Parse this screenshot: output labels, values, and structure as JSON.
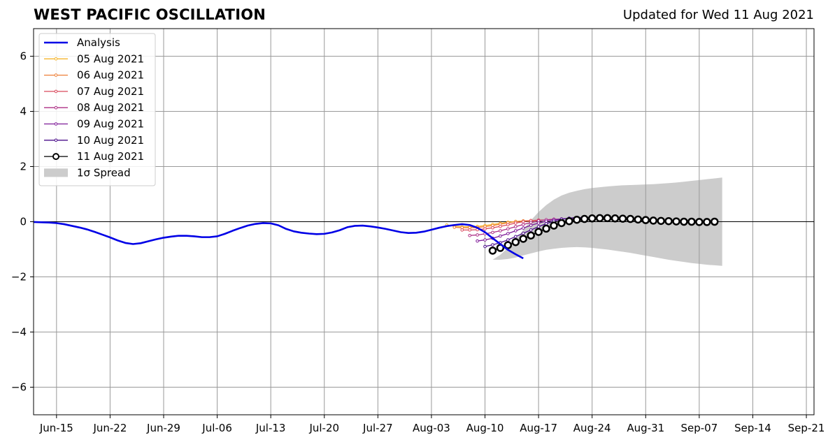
{
  "header": {
    "title": "WEST PACIFIC OSCILLATION",
    "updated": "Updated for Wed 11 Aug 2021"
  },
  "chart_data": {
    "type": "line",
    "title": "WEST PACIFIC OSCILLATION",
    "subtitle": "Updated for Wed 11 Aug 2021",
    "xlabel": "",
    "ylabel": "",
    "ylim": [
      -7,
      7
    ],
    "yticks": [
      -6,
      -4,
      -2,
      0,
      2,
      4,
      6
    ],
    "ytick_labels": [
      "−6",
      "−4",
      "−2",
      "0",
      "2",
      "4",
      "6"
    ],
    "xlim": [
      "2021-06-12",
      "2021-09-22"
    ],
    "xticks": [
      "2021-06-15",
      "2021-06-22",
      "2021-06-29",
      "2021-07-06",
      "2021-07-13",
      "2021-07-20",
      "2021-07-27",
      "2021-08-03",
      "2021-08-10",
      "2021-08-17",
      "2021-08-24",
      "2021-08-31",
      "2021-09-07",
      "2021-09-14",
      "2021-09-21"
    ],
    "xtick_labels": [
      "Jun-15",
      "Jun-22",
      "Jun-29",
      "Jul-06",
      "Jul-13",
      "Jul-20",
      "Jul-27",
      "Aug-03",
      "Aug-10",
      "Aug-17",
      "Aug-24",
      "Aug-31",
      "Sep-07",
      "Sep-14",
      "Sep-21"
    ],
    "grid": true,
    "legend_position": "top-left",
    "zero_line": true,
    "analysis": {
      "name": "Analysis",
      "color": "#0000e6",
      "start": "2021-06-12",
      "values": [
        -0.01,
        -0.02,
        -0.03,
        -0.05,
        -0.09,
        -0.15,
        -0.21,
        -0.28,
        -0.37,
        -0.47,
        -0.57,
        -0.68,
        -0.77,
        -0.81,
        -0.78,
        -0.71,
        -0.64,
        -0.58,
        -0.54,
        -0.51,
        -0.51,
        -0.53,
        -0.56,
        -0.56,
        -0.53,
        -0.44,
        -0.33,
        -0.23,
        -0.14,
        -0.08,
        -0.05,
        -0.06,
        -0.13,
        -0.26,
        -0.35,
        -0.4,
        -0.43,
        -0.45,
        -0.44,
        -0.39,
        -0.31,
        -0.2,
        -0.15,
        -0.14,
        -0.17,
        -0.21,
        -0.26,
        -0.32,
        -0.38,
        -0.41,
        -0.4,
        -0.36,
        -0.29,
        -0.22,
        -0.16,
        -0.12,
        -0.09,
        -0.12,
        -0.22,
        -0.38,
        -0.6,
        -0.81,
        -1.02,
        -1.18,
        -1.33
      ]
    },
    "series": [
      {
        "name": "05 Aug 2021",
        "color": "#f5b52c",
        "start": "2021-08-05",
        "values": [
          -0.12,
          -0.16,
          -0.18,
          -0.18,
          -0.17,
          -0.14,
          -0.1,
          -0.06,
          -0.02,
          0.01,
          0.02,
          0.01
        ]
      },
      {
        "name": "06 Aug 2021",
        "color": "#ee7f37",
        "start": "2021-08-06",
        "values": [
          -0.2,
          -0.22,
          -0.22,
          -0.21,
          -0.18,
          -0.14,
          -0.09,
          -0.04,
          0.0,
          0.03,
          0.04,
          0.03
        ]
      },
      {
        "name": "07 Aug 2021",
        "color": "#d9485b",
        "start": "2021-08-07",
        "values": [
          -0.3,
          -0.3,
          -0.29,
          -0.26,
          -0.22,
          -0.17,
          -0.11,
          -0.05,
          0.0,
          0.04,
          0.06,
          0.06
        ]
      },
      {
        "name": "08 Aug 2021",
        "color": "#ad2f86",
        "start": "2021-08-08",
        "values": [
          -0.5,
          -0.48,
          -0.44,
          -0.39,
          -0.33,
          -0.26,
          -0.18,
          -0.1,
          -0.03,
          0.03,
          0.07,
          0.09,
          0.09
        ]
      },
      {
        "name": "09 Aug 2021",
        "color": "#7e1a98",
        "start": "2021-08-09",
        "values": [
          -0.7,
          -0.66,
          -0.6,
          -0.52,
          -0.43,
          -0.33,
          -0.23,
          -0.13,
          -0.05,
          0.02,
          0.07,
          0.1,
          0.12,
          0.12
        ]
      },
      {
        "name": "10 Aug 2021",
        "color": "#4a0c8a",
        "start": "2021-08-10",
        "values": [
          -0.9,
          -0.84,
          -0.76,
          -0.66,
          -0.54,
          -0.42,
          -0.3,
          -0.18,
          -0.07,
          0.02,
          0.09,
          0.13,
          0.15,
          0.15,
          0.14
        ]
      },
      {
        "name": "11 Aug 2021",
        "color": "#000000",
        "start": "2021-08-11",
        "values": [
          -1.05,
          -0.95,
          -0.85,
          -0.74,
          -0.62,
          -0.5,
          -0.37,
          -0.25,
          -0.14,
          -0.05,
          0.02,
          0.07,
          0.1,
          0.12,
          0.13,
          0.13,
          0.12,
          0.11,
          0.1,
          0.08,
          0.06,
          0.04,
          0.03,
          0.02,
          0.01,
          0.0,
          0.0,
          -0.01,
          -0.01,
          0.0
        ]
      }
    ],
    "spread": {
      "name": "1σ Spread",
      "color": "#cccccc",
      "start": "2021-08-11",
      "upper": [
        -1.38,
        -1.2,
        -0.95,
        -0.65,
        -0.3,
        0.05,
        0.35,
        0.6,
        0.8,
        0.95,
        1.05,
        1.12,
        1.18,
        1.22,
        1.25,
        1.28,
        1.3,
        1.32,
        1.33,
        1.34,
        1.35,
        1.36,
        1.38,
        1.4,
        1.42,
        1.45,
        1.48,
        1.51,
        1.54,
        1.57,
        1.6
      ],
      "lower": [
        -1.38,
        -1.38,
        -1.35,
        -1.3,
        -1.22,
        -1.15,
        -1.08,
        -1.02,
        -0.98,
        -0.95,
        -0.93,
        -0.92,
        -0.93,
        -0.95,
        -0.98,
        -1.01,
        -1.05,
        -1.09,
        -1.13,
        -1.18,
        -1.23,
        -1.28,
        -1.33,
        -1.38,
        -1.42,
        -1.46,
        -1.5,
        -1.53,
        -1.56,
        -1.58,
        -1.6
      ]
    }
  }
}
